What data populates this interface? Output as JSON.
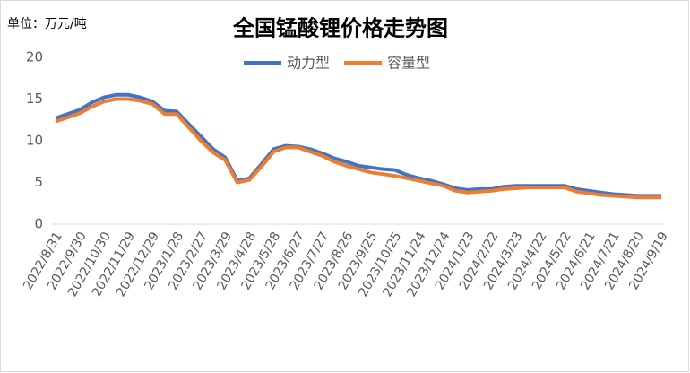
{
  "chart_data": {
    "type": "line",
    "title": "全国锰酸锂价格走势图",
    "unit_label": "单位：万元/吨",
    "categories": [
      "2022/8/31",
      null,
      "2022/9/30",
      null,
      "2022/10/30",
      null,
      "2022/11/29",
      null,
      "2022/12/29",
      null,
      "2023/1/28",
      null,
      "2023/2/27",
      null,
      "2023/3/29",
      null,
      "2023/4/28",
      null,
      "2023/5/28",
      null,
      "2023/6/27",
      null,
      "2023/7/27",
      null,
      "2023/8/26",
      null,
      "2023/9/25",
      null,
      "2023/10/25",
      null,
      "2023/11/24",
      null,
      "2023/12/24",
      null,
      "2024/1/23",
      null,
      "2024/2/22",
      null,
      "2024/3/23",
      null,
      "2024/4/22",
      null,
      "2024/5/22",
      null,
      "2024/6/21",
      null,
      "2024/7/21",
      null,
      "2024/8/20",
      null,
      "2024/9/19"
    ],
    "series": [
      {
        "name": "动力型",
        "color": "#4472c4",
        "values": [
          12.7,
          13.2,
          13.7,
          14.6,
          15.2,
          15.5,
          15.5,
          15.2,
          14.7,
          13.6,
          13.5,
          12.0,
          10.5,
          9.0,
          8.0,
          5.2,
          5.5,
          7.2,
          9.0,
          9.4,
          9.3,
          9.0,
          8.5,
          7.9,
          7.5,
          7.0,
          6.8,
          6.6,
          6.5,
          5.9,
          5.5,
          5.2,
          4.8,
          4.3,
          4.1,
          4.2,
          4.2,
          4.5,
          4.6,
          4.6,
          4.6,
          4.6,
          4.6,
          4.2,
          4.0,
          3.8,
          3.6,
          3.5,
          3.4,
          3.4,
          3.4
        ]
      },
      {
        "name": "容量型",
        "color": "#ed7d31",
        "values": [
          12.3,
          12.8,
          13.3,
          14.1,
          14.7,
          15.0,
          15.0,
          14.8,
          14.4,
          13.2,
          13.2,
          11.6,
          10.0,
          8.6,
          7.7,
          5.0,
          5.3,
          6.9,
          8.7,
          9.2,
          9.2,
          8.7,
          8.2,
          7.5,
          7.0,
          6.6,
          6.2,
          6.0,
          5.8,
          5.5,
          5.2,
          4.9,
          4.6,
          4.0,
          3.8,
          3.9,
          4.0,
          4.2,
          4.3,
          4.4,
          4.4,
          4.4,
          4.4,
          3.9,
          3.7,
          3.5,
          3.4,
          3.3,
          3.2,
          3.2,
          3.2
        ]
      }
    ],
    "ylim": [
      0,
      20
    ],
    "yticks": [
      0,
      5,
      10,
      15,
      20
    ],
    "grid": false,
    "legend": "top"
  }
}
